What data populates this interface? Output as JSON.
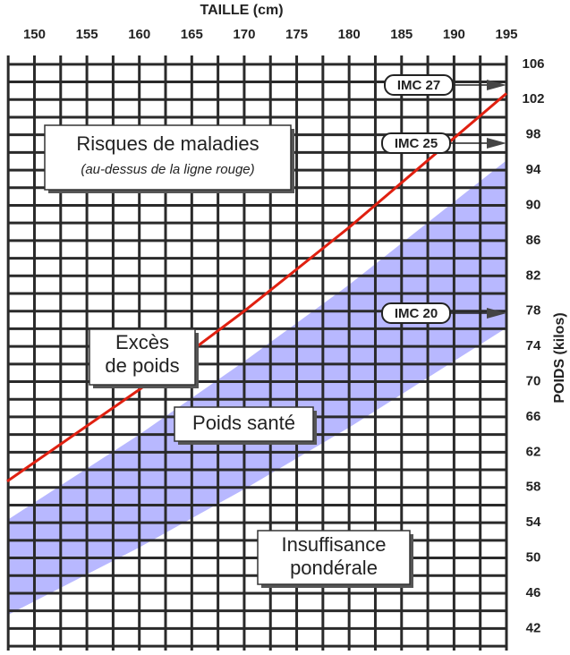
{
  "chart_data": {
    "type": "line",
    "title": "TAILLE (cm)",
    "y_label": "POIDS (kilos)",
    "xlim": [
      147.4,
      195
    ],
    "ylim": [
      39.5,
      107
    ],
    "xticks": [
      150,
      155,
      160,
      165,
      170,
      175,
      180,
      185,
      190,
      195
    ],
    "yticks": [
      42,
      46,
      50,
      54,
      58,
      62,
      66,
      70,
      74,
      78,
      82,
      86,
      90,
      94,
      98,
      102,
      106
    ],
    "grid": true,
    "band_color": "#b8b8ff",
    "series": [
      {
        "name": "IMC 27",
        "color": "#e02010",
        "x": [
          147.4,
          160,
          170,
          180,
          195
        ],
        "values": [
          58.7,
          69.1,
          78.0,
          87.5,
          102.7
        ]
      },
      {
        "name": "IMC 25",
        "color": "#b8b8ff",
        "x": [
          147.4,
          160,
          170,
          180,
          195
        ],
        "values": [
          54.3,
          64.0,
          72.3,
          81.0,
          95.1
        ]
      },
      {
        "name": "IMC 20",
        "color": "#b8b8ff",
        "x": [
          147.4,
          160,
          170,
          180,
          195
        ],
        "values": [
          43.5,
          51.2,
          57.8,
          64.8,
          76.1
        ]
      }
    ],
    "annotations": [
      {
        "lines": [
          "Risques de maladies",
          "(au-dessus de la ligne rouge)"
        ]
      },
      {
        "lines": [
          "Excès",
          "de poids"
        ]
      },
      {
        "lines": [
          "Poids santé"
        ]
      },
      {
        "lines": [
          "Insuffisance",
          "pondérale"
        ]
      }
    ]
  }
}
